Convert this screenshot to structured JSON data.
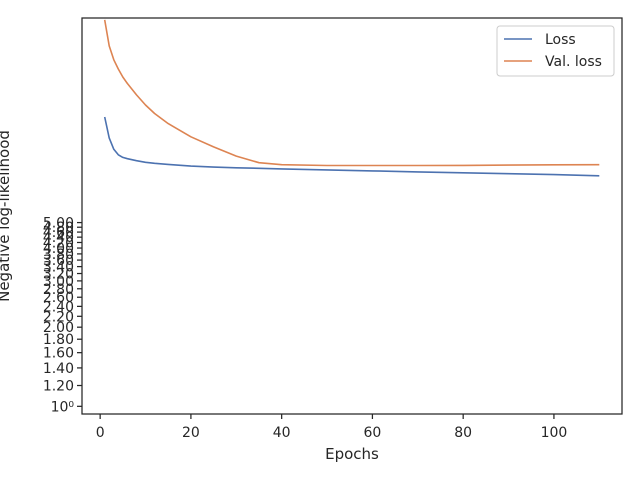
{
  "chart_data": {
    "type": "line",
    "xlabel": "Epochs",
    "ylabel": "Negative log-likelihood",
    "xlim": [
      -4,
      115
    ],
    "x_ticks": [
      0,
      20,
      40,
      60,
      80,
      100
    ],
    "y_scale": "log",
    "ylim": [
      0.935,
      30
    ],
    "y_tick_labels": [
      "10⁰",
      "1.20",
      "1.40",
      "1.60",
      "1.80",
      "2.00",
      "2.20",
      "2.40",
      "2.60",
      "2.80",
      "3.00",
      "3.20",
      "3.40",
      "3.60",
      "3.80",
      "4.00",
      "4.20",
      "4.40",
      "4.60",
      "4.80",
      "5.00"
    ],
    "y_tick_values": [
      1.0,
      1.2,
      1.4,
      1.6,
      1.8,
      2.0,
      2.2,
      2.4,
      2.6,
      2.8,
      3.0,
      3.2,
      3.4,
      3.6,
      3.8,
      4.0,
      4.2,
      4.4,
      4.6,
      4.8,
      5.0
    ],
    "grid": false,
    "legend_position": "top-right",
    "series": [
      {
        "name": "Loss",
        "color": "#4c72b0",
        "x": [
          1,
          2,
          3,
          4,
          5,
          6,
          8,
          10,
          12,
          15,
          20,
          25,
          30,
          35,
          40,
          50,
          60,
          70,
          80,
          90,
          100,
          110
        ],
        "y": [
          12.6,
          10.5,
          9.5,
          9.05,
          8.85,
          8.75,
          8.6,
          8.48,
          8.4,
          8.32,
          8.2,
          8.13,
          8.08,
          8.04,
          8.0,
          7.93,
          7.86,
          7.79,
          7.73,
          7.67,
          7.61,
          7.53
        ]
      },
      {
        "name": "Val. loss",
        "color": "#dd8452",
        "x": [
          1,
          2,
          3,
          4,
          5,
          6,
          8,
          10,
          12,
          15,
          20,
          25,
          30,
          35,
          40,
          50,
          60,
          70,
          80,
          90,
          100,
          110
        ],
        "y": [
          29.5,
          23.5,
          20.8,
          19.2,
          17.9,
          16.9,
          15.3,
          14.0,
          13.0,
          11.9,
          10.6,
          9.7,
          8.95,
          8.45,
          8.3,
          8.24,
          8.24,
          8.24,
          8.25,
          8.27,
          8.29,
          8.3
        ]
      }
    ]
  }
}
